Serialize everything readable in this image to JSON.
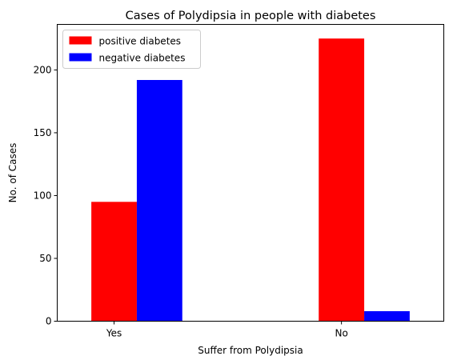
{
  "chart_data": {
    "type": "bar",
    "title": "Cases of Polydipsia in people with diabetes",
    "xlabel": "Suffer from Polydipsia",
    "ylabel": "No. of Cases",
    "categories": [
      "Yes",
      "No"
    ],
    "series": [
      {
        "name": "positive diabetes",
        "color": "#ff0000",
        "values": [
          95,
          225
        ]
      },
      {
        "name": "negative diabetes",
        "color": "#0000ff",
        "values": [
          192,
          8
        ]
      }
    ],
    "ylim": [
      0,
      236.25
    ],
    "yticks": [
      0,
      50,
      100,
      150,
      200
    ],
    "grid": false,
    "legend_position": "top-left"
  }
}
